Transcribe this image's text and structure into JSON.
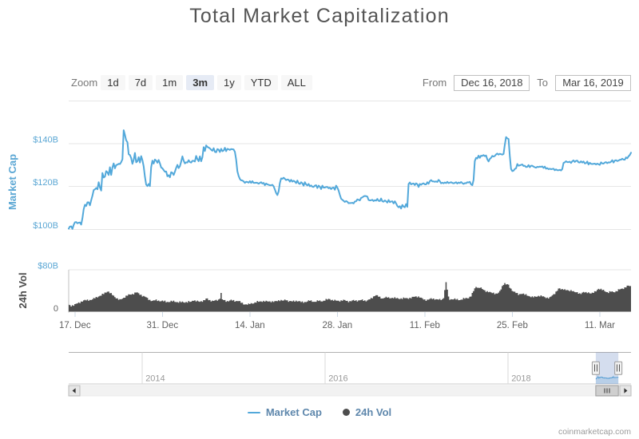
{
  "page": {
    "title": "Total Market Capitalization",
    "watermark": "coinmarketcap.com"
  },
  "range_selector": {
    "zoom_label": "Zoom",
    "buttons": [
      {
        "label": "1d",
        "selected": false
      },
      {
        "label": "7d",
        "selected": false
      },
      {
        "label": "1m",
        "selected": false
      },
      {
        "label": "3m",
        "selected": true
      },
      {
        "label": "1y",
        "selected": false
      },
      {
        "label": "YTD",
        "selected": false
      },
      {
        "label": "ALL",
        "selected": false
      }
    ],
    "from_label": "From",
    "from_value": "Dec 16, 2018",
    "to_label": "To",
    "to_value": "Mar 16, 2019"
  },
  "legend": {
    "items": [
      {
        "label": "Market Cap",
        "marker": "line",
        "color": "#52A8DA"
      },
      {
        "label": "24h Vol",
        "marker": "circle",
        "color": "#4D4D4D"
      }
    ]
  },
  "colors": {
    "market_cap_line": "#52A8DA",
    "axis_label_blue": "#5BA7D4",
    "volume_bar": "#4D4D4D",
    "gridline": "#E6E6E6",
    "x_label": "#606060",
    "legend_text": "#5E87AC",
    "selected_button_bg": "#E6EBF5",
    "button_bg": "#F7F7F7",
    "navigator_mask": "rgba(102,133,194,0.28)"
  },
  "chart_data": [
    {
      "type": "line",
      "name": "Market Cap",
      "color": "#52A8DA",
      "title": "Total Market Capitalization",
      "ylabel": "Market Cap",
      "ylim": [
        95,
        160
      ],
      "yticks": [
        {
          "value": 100,
          "label": "$100B"
        },
        {
          "value": 120,
          "label": "$120B"
        },
        {
          "value": 140,
          "label": "$140B"
        },
        {
          "value": 160,
          "label": ""
        }
      ],
      "x_unit": "days since 2018-12-16, 5 samples per day",
      "x_start": "Dec 16, 2018",
      "x_end": "Mar 16, 2019",
      "x_range": [
        0,
        90
      ],
      "xticks": [
        {
          "day": 1,
          "label": "17. Dec"
        },
        {
          "day": 15,
          "label": "31. Dec"
        },
        {
          "day": 29,
          "label": "14. Jan"
        },
        {
          "day": 43,
          "label": "28. Jan"
        },
        {
          "day": 57,
          "label": "11. Feb"
        },
        {
          "day": 71,
          "label": "25. Feb"
        },
        {
          "day": 85,
          "label": "11. Mar"
        }
      ],
      "unit": "USD billions",
      "values": [
        100.3,
        101.3,
        101.4,
        100.2,
        102.1,
        103.3,
        103.4,
        102.8,
        103.1,
        103.2,
        102.2,
        105.2,
        109.4,
        111.5,
        110.9,
        112.6,
        112.6,
        111.2,
        113.6,
        115.7,
        118.3,
        118.7,
        119.3,
        118.7,
        122.0,
        119.6,
        118.1,
        126.3,
        124.2,
        124.6,
        127.2,
        126.6,
        125.4,
        129.0,
        125.4,
        128.9,
        130.8,
        128.5,
        130.0,
        130.2,
        130.6,
        130.5,
        131.4,
        132.7,
        146.3,
        144.1,
        141.6,
        140.7,
        135.1,
        134.7,
        133.3,
        130.6,
        132.4,
        135.7,
        131.3,
        131.8,
        133.7,
        131.2,
        134.2,
        132.3,
        129.4,
        124.6,
        120.9,
        120.2,
        121.2,
        120.2,
        129.0,
        132.1,
        130.7,
        132.6,
        132.1,
        131.1,
        132.4,
        130.8,
        128.9,
        128.5,
        127.7,
        126.9,
        127.0,
        124.8,
        125.3,
        124.3,
        126.7,
        126.4,
        125.4,
        126.9,
        128.7,
        130.1,
        128.6,
        129.5,
        131.6,
        134.1,
        132.1,
        130.8,
        131.3,
        131.2,
        132.3,
        131.4,
        131.2,
        132.0,
        132.0,
        131.7,
        134.3,
        132.8,
        131.8,
        134.1,
        131.8,
        133.7,
        138.4,
        136.6,
        139.2,
        138.5,
        138.2,
        137.8,
        137.2,
        136.7,
        137.9,
        136.2,
        136.0,
        137.5,
        137.2,
        136.1,
        137.6,
        136.5,
        136.8,
        138.1,
        136.5,
        137.6,
        137.4,
        137.1,
        137.5,
        137.4,
        137.3,
        136.2,
        132.6,
        127.1,
        124.9,
        123.5,
        122.9,
        122.8,
        122.4,
        121.7,
        122.2,
        122.1,
        121.8,
        122.5,
        121.7,
        122.5,
        121.7,
        121.7,
        121.8,
        121.7,
        121.3,
        121.7,
        122.0,
        121.4,
        121.7,
        120.6,
        121.4,
        121.0,
        120.8,
        120.6,
        120.6,
        120.8,
        120.1,
        118.6,
        117.0,
        116.0,
        117.7,
        121.6,
        123.8,
        123.6,
        124.1,
        123.6,
        123.0,
        123.3,
        123.1,
        122.3,
        123.1,
        122.3,
        122.7,
        122.3,
        121.6,
        122.8,
        121.5,
        121.2,
        122.0,
        121.5,
        120.4,
        122.0,
        121.0,
        120.5,
        121.2,
        120.1,
        120.5,
        119.9,
        119.8,
        120.4,
        120.6,
        119.3,
        120.4,
        119.9,
        118.8,
        120.4,
        119.5,
        119.5,
        119.8,
        119.8,
        119.2,
        119.5,
        118.8,
        119.4,
        119.5,
        118.5,
        120.4,
        119.5,
        118.1,
        116.1,
        114.3,
        113.8,
        113.3,
        112.8,
        113.2,
        112.9,
        112.2,
        112.3,
        112.3,
        112.4,
        112.1,
        113.0,
        113.1,
        114.0,
        113.8,
        113.5,
        114.7,
        114.9,
        115.4,
        115.6,
        115.5,
        115.3,
        113.7,
        113.5,
        113.6,
        113.8,
        113.2,
        113.6,
        113.4,
        114.2,
        113.3,
        113.2,
        114.4,
        113.1,
        112.9,
        113.5,
        113.1,
        112.5,
        113.7,
        112.7,
        113.0,
        113.1,
        112.1,
        113.1,
        112.1,
        110.9,
        110.3,
        110.8,
        109.7,
        111.4,
        110.6,
        110.3,
        111.8,
        110.5,
        121.2,
        121.9,
        121.0,
        121.3,
        121.4,
        120.7,
        121.5,
        121.1,
        119.8,
        121.2,
        120.8,
        121.3,
        121.5,
        121.0,
        121.0,
        122.0,
        121.3,
        122.5,
        123.0,
        122.4,
        122.4,
        122.2,
        122.4,
        122.1,
        123.1,
        122.5,
        121.5,
        121.8,
        121.5,
        121.9,
        121.6,
        122.2,
        121.6,
        121.8,
        122.0,
        121.7,
        121.5,
        121.7,
        122.0,
        121.4,
        121.9,
        121.6,
        122.1,
        121.6,
        121.2,
        121.6,
        121.5,
        122.0,
        121.9,
        122.2,
        121.0,
        120.6,
        123.1,
        131.9,
        133.4,
        133.1,
        134.4,
        133.4,
        134.4,
        134.3,
        134.7,
        134.2,
        134.5,
        132.7,
        131.7,
        132.9,
        133.4,
        134.3,
        134.0,
        134.3,
        135.0,
        135.4,
        134.9,
        135.3,
        135.1,
        134.9,
        135.2,
        139.5,
        143.1,
        142.5,
        142.2,
        134.3,
        128.2,
        127.2,
        127.4,
        128.2,
        128.5,
        130.5,
        129.7,
        129.9,
        130.1,
        130.3,
        129.6,
        129.7,
        129.1,
        129.2,
        130.0,
        129.0,
        129.7,
        129.7,
        129.3,
        129.0,
        128.8,
        129.2,
        129.1,
        129.3,
        129.2,
        129.4,
        128.7,
        129.3,
        128.3,
        128.6,
        128.1,
        128.3,
        128.1,
        128.2,
        128.3,
        127.6,
        128.0,
        127.6,
        127.6,
        127.8,
        127.5,
        128.2,
        131.0,
        131.3,
        131.8,
        131.4,
        131.4,
        131.6,
        131.0,
        131.8,
        132.2,
        131.5,
        132.0,
        132.1,
        131.3,
        131.2,
        131.8,
        131.2,
        131.7,
        130.8,
        130.9,
        131.7,
        130.3,
        131.1,
        130.6,
        130.5,
        130.6,
        130.7,
        130.3,
        130.7,
        130.4,
        130.1,
        131.3,
        130.8,
        130.7,
        131.2,
        131.4,
        130.9,
        131.3,
        131.2,
        131.6,
        132.3,
        131.2,
        132.1,
        132.3,
        131.9,
        132.1,
        132.5,
        132.5,
        133.0,
        132.6,
        132.5,
        133.6,
        133.2,
        134.1,
        134.7,
        135.8
      ]
    },
    {
      "type": "column",
      "name": "24h Vol",
      "color": "#4D4D4D",
      "ylabel": "24h Vol",
      "ylim": [
        0,
        80
      ],
      "yticks": [
        {
          "value": 0,
          "label": "0"
        },
        {
          "value": 80,
          "label": "$80B"
        }
      ],
      "x_range": [
        0,
        90
      ],
      "unit": "USD billions",
      "values": [
        13.3,
        12.6,
        9.9,
        12.3,
        11.3,
        14.5,
        15.3,
        15.9,
        17.7,
        16.4,
        19.4,
        19.2,
        21.5,
        22.6,
        21.6,
        23.3,
        20.8,
        22.5,
        22.3,
        23.4,
        26.1,
        25.5,
        28.2,
        27.0,
        28.9,
        30.2,
        30.6,
        34.2,
        33.6,
        36.6,
        36.3,
        38.0,
        38.4,
        35.3,
        35.6,
        31.8,
        30.7,
        27.9,
        25.4,
        25.5,
        22.7,
        24.0,
        23.6,
        24.9,
        26.5,
        26.7,
        30.6,
        30.4,
        33.1,
        32.8,
        32.5,
        34.0,
        33.0,
        36.5,
        36.5,
        36.8,
        35.3,
        32.2,
        32.3,
        29.0,
        30.1,
        28.7,
        27.6,
        26.5,
        22.4,
        22.7,
        20.1,
        20.8,
        21.8,
        21.6,
        23.5,
        20.3,
        21.3,
        19.6,
        20.0,
        21.3,
        19.6,
        21.2,
        18.0,
        18.6,
        18.3,
        18.4,
        21.0,
        19.4,
        21.1,
        18.6,
        18.2,
        18.3,
        17.2,
        19.8,
        17.9,
        19.4,
        17.9,
        17.1,
        18.6,
        17.4,
        20.3,
        18.7,
        19.0,
        20.8,
        20.8,
        21.8,
        19.4,
        21.1,
        19.7,
        18.9,
        20.1,
        18.9,
        22.1,
        21.9,
        25.2,
        25.3,
        21.9,
        22.2,
        19.4,
        21.2,
        20.5,
        21.5,
        22.6,
        21.0,
        23.3,
        24.7,
        35.8,
        23.7,
        22.1,
        22.3,
        18.8,
        20.4,
        19.7,
        21.4,
        23.0,
        21.2,
        22.3,
        19.0,
        20.3,
        20.1,
        20.2,
        20.4,
        17.0,
        17.2,
        13.8,
        13.8,
        14.1,
        13.3,
        15.6,
        14.4,
        16.3,
        15.4,
        15.6,
        17.8,
        17.3,
        20.5,
        18.9,
        19.7,
        19.7,
        18.7,
        20.7,
        19.0,
        20.9,
        19.8,
        19.5,
        19.9,
        17.9,
        20.0,
        18.5,
        20.1,
        20.4,
        20.0,
        21.9,
        20.2,
        22.4,
        21.1,
        21.4,
        23.2,
        21.7,
        21.8,
        18.9,
        20.5,
        20.1,
        19.7,
        21.3,
        19.1,
        21.1,
        19.4,
        20.0,
        20.1,
        18.2,
        19.6,
        17.0,
        18.6,
        18.3,
        19.4,
        21.7,
        20.5,
        21.8,
        18.8,
        18.8,
        18.8,
        18.9,
        21.8,
        20.4,
        21.5,
        19.6,
        19.4,
        21.0,
        21.0,
        24.4,
        23.1,
        24.6,
        24.0,
        21.8,
        22.7,
        20.8,
        22.8,
        21.2,
        21.0,
        21.0,
        19.3,
        21.8,
        20.8,
        22.9,
        22.2,
        20.6,
        20.7,
        18.1,
        20.4,
        19.9,
        21.6,
        22.4,
        20.6,
        21.9,
        19.5,
        21.5,
        21.8,
        22.3,
        23.5,
        20.6,
        21.7,
        19.7,
        21.5,
        23.3,
        23.7,
        26.2,
        25.6,
        29.2,
        29.9,
        31.5,
        31.5,
        28.5,
        28.8,
        25.2,
        25.1,
        25.8,
        26.5,
        28.6,
        26.6,
        27.7,
        25.6,
        25.7,
        26.5,
        25.6,
        27.6,
        25.3,
        26.2,
        24.8,
        24.0,
        25.6,
        24.2,
        27.1,
        25.8,
        26.1,
        25.8,
        24.3,
        26.6,
        25.6,
        28.4,
        28.3,
        28.5,
        29.4,
        27.2,
        29.1,
        26.8,
        26.8,
        25.8,
        23.2,
        23.5,
        20.6,
        23.0,
        23.1,
        24.4,
        25.8,
        24.0,
        25.2,
        22.8,
        23.9,
        23.6,
        23.0,
        24.4,
        22.0,
        23.8,
        26.0,
        41.4,
        56.4,
        42.1,
        29.0,
        22.7,
        23.8,
        23.4,
        23.4,
        25.4,
        23.1,
        24.4,
        21.9,
        22.1,
        23.1,
        23.1,
        26.2,
        24.7,
        26.4,
        25.5,
        25.6,
        28.5,
        29.0,
        35.9,
        39.2,
        44.6,
        47.3,
        45.7,
        45.6,
        45.4,
        46.3,
        43.5,
        41.8,
        40.8,
        37.7,
        39.2,
        37.1,
        37.9,
        37.0,
        35.5,
        36.3,
        33.4,
        34.8,
        34.5,
        36.3,
        39.7,
        42.5,
        48.9,
        51.1,
        54.6,
        51.9,
        52.5,
        51.6,
        45.5,
        44.0,
        39.7,
        38.5,
        38.0,
        35.6,
        35.9,
        32.0,
        33.7,
        33.8,
        33.9,
        34.7,
        32.2,
        33.6,
        30.5,
        30.1,
        29.1,
        27.7,
        29.3,
        27.5,
        29.5,
        28.4,
        28.7,
        30.3,
        29.0,
        31.3,
        29.2,
        29.4,
        27.8,
        25.9,
        27.0,
        25.2,
        27.9,
        28.9,
        31.1,
        33.3,
        33.6,
        38.5,
        39.9,
        44.2,
        44.5,
        42.3,
        43.5,
        41.7,
        42.8,
        41.0,
        41.3,
        40.8,
        39.1,
        41.3,
        39.0,
        39.3,
        37.5,
        36.9,
        37.3,
        34.3,
        35.2,
        33.8,
        36.4,
        37.7,
        36.5,
        37.6,
        35.4,
        36.9,
        35.0,
        34.7,
        36.4,
        35.9,
        39.1,
        38.6,
        41.5,
        43.7,
        42.2,
        43.8,
        41.2,
        42.0,
        39.0,
        37.8,
        37.4,
        35.7,
        39.0,
        38.1,
        38.9,
        37.3,
        37.0,
        39.3,
        38.9,
        42.8,
        42.5,
        43.6,
        44.2,
        43.3,
        46.4,
        46.2,
        49.8,
        49.7,
        48.7,
        49.1
      ]
    }
  ],
  "navigator": {
    "year_labels": [
      {
        "year": 2014,
        "label": "2014"
      },
      {
        "year": 2016,
        "label": "2016"
      },
      {
        "year": 2018,
        "label": "2018"
      }
    ],
    "axis_start_year": 2013.2,
    "axis_end_year": 2019.35,
    "selected_start_year": 2018.958,
    "selected_end_year": 2019.205
  }
}
